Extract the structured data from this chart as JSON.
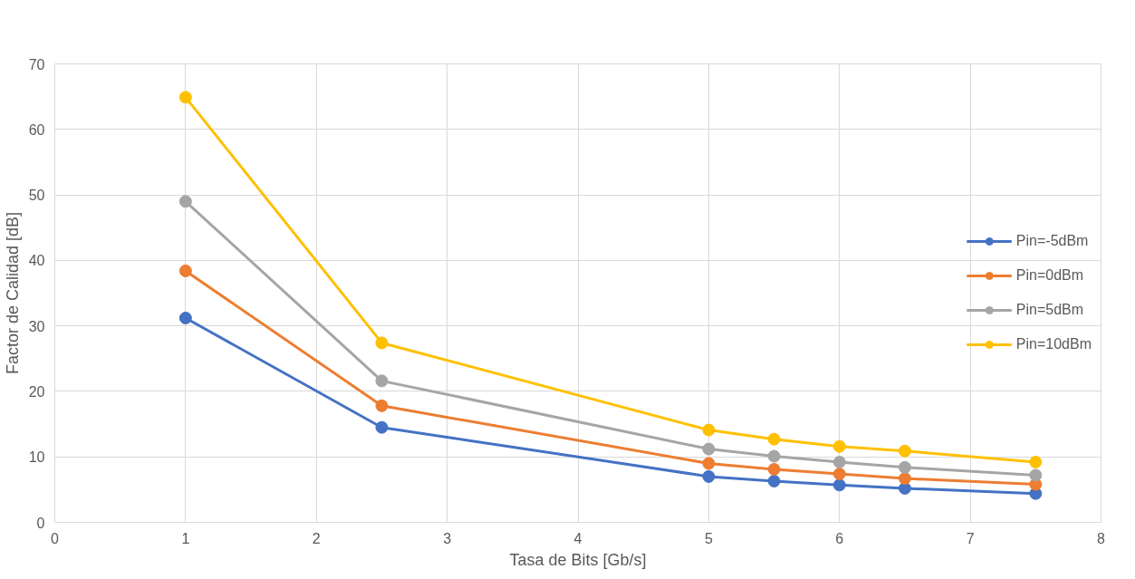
{
  "chart_data": {
    "type": "line",
    "xlabel": "Tasa de Bits [Gb/s]",
    "ylabel": "Factor de Calidad [dB]",
    "x": [
      1,
      2.5,
      5,
      5.5,
      6,
      6.5,
      7.5
    ],
    "series": [
      {
        "name": "Pin=-5dBm",
        "color": "#4472c4",
        "values": [
          31.2,
          14.5,
          7.0,
          6.3,
          5.7,
          5.2,
          4.4
        ]
      },
      {
        "name": "Pin=0dBm",
        "color": "#ed7d31",
        "values": [
          38.4,
          17.8,
          9.0,
          8.1,
          7.4,
          6.7,
          5.8
        ]
      },
      {
        "name": "Pin=5dBm",
        "color": "#a5a5a5",
        "values": [
          49.0,
          21.6,
          11.2,
          10.1,
          9.2,
          8.4,
          7.2
        ]
      },
      {
        "name": "Pin=10dBm",
        "color": "#ffc000",
        "values": [
          64.9,
          27.4,
          14.1,
          12.7,
          11.6,
          10.9,
          9.2
        ]
      }
    ],
    "xlim": [
      0,
      8
    ],
    "xticks": [
      0,
      1,
      2,
      3,
      4,
      5,
      6,
      7,
      8
    ],
    "ylim": [
      0,
      70
    ],
    "yticks": [
      0,
      10,
      20,
      30,
      40,
      50,
      60,
      70
    ],
    "grid": true,
    "legend": "right",
    "marker": "circle",
    "line_style": "solid"
  }
}
